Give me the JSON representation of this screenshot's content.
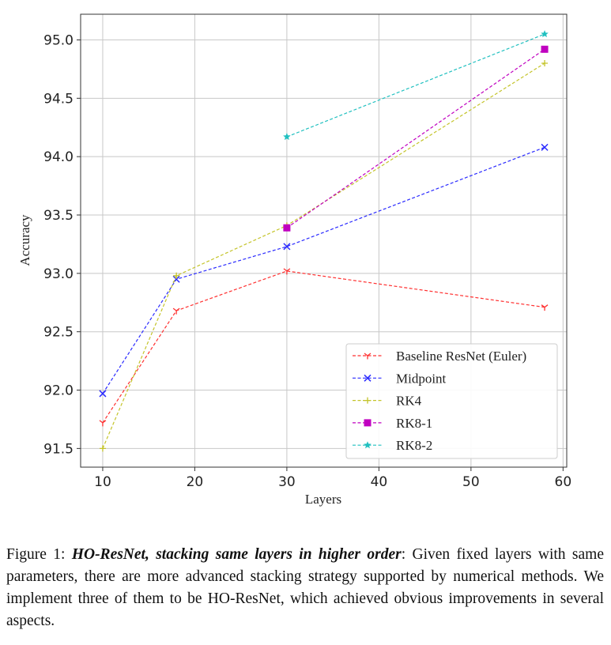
{
  "chart_data": {
    "type": "line",
    "title": "",
    "xlabel": "Layers",
    "ylabel": "Accuracy",
    "xlim": [
      7.6,
      60.4
    ],
    "ylim": [
      91.34,
      95.22
    ],
    "xticks": [
      10,
      20,
      30,
      40,
      50,
      60
    ],
    "yticks": [
      "91.5",
      "92.0",
      "92.5",
      "93.0",
      "93.5",
      "94.0",
      "94.5",
      "95.0"
    ],
    "grid": true,
    "legend_position": "bottom-right",
    "series": [
      {
        "name": "Baseline ResNet (Euler)",
        "color": "#ff3030",
        "marker": "tri-down",
        "x": [
          10,
          18,
          30,
          58
        ],
        "y": [
          91.72,
          92.68,
          93.02,
          92.71
        ]
      },
      {
        "name": "Midpoint",
        "color": "#2a2aff",
        "marker": "x",
        "x": [
          10,
          18,
          30,
          58
        ],
        "y": [
          91.97,
          92.95,
          93.23,
          94.08
        ]
      },
      {
        "name": "RK4",
        "color": "#c4c42a",
        "marker": "plus",
        "x": [
          10,
          18,
          30,
          58
        ],
        "y": [
          91.5,
          92.98,
          93.41,
          94.8
        ]
      },
      {
        "name": "RK8-1",
        "color": "#c000c0",
        "marker": "square",
        "x": [
          30,
          58
        ],
        "y": [
          93.39,
          94.92
        ]
      },
      {
        "name": "RK8-2",
        "color": "#20c0c0",
        "marker": "star",
        "x": [
          30,
          58
        ],
        "y": [
          94.17,
          95.05
        ]
      }
    ]
  },
  "caption": {
    "prefix": "Figure 1: ",
    "bold": "HO-ResNet, stacking same layers in higher order",
    "body": ": Given fixed layers with same parameters, there are more advanced stacking strategy supported by numerical methods. We implement three of them to be HO-ResNet, which achieved obvious improvements in several aspects."
  }
}
